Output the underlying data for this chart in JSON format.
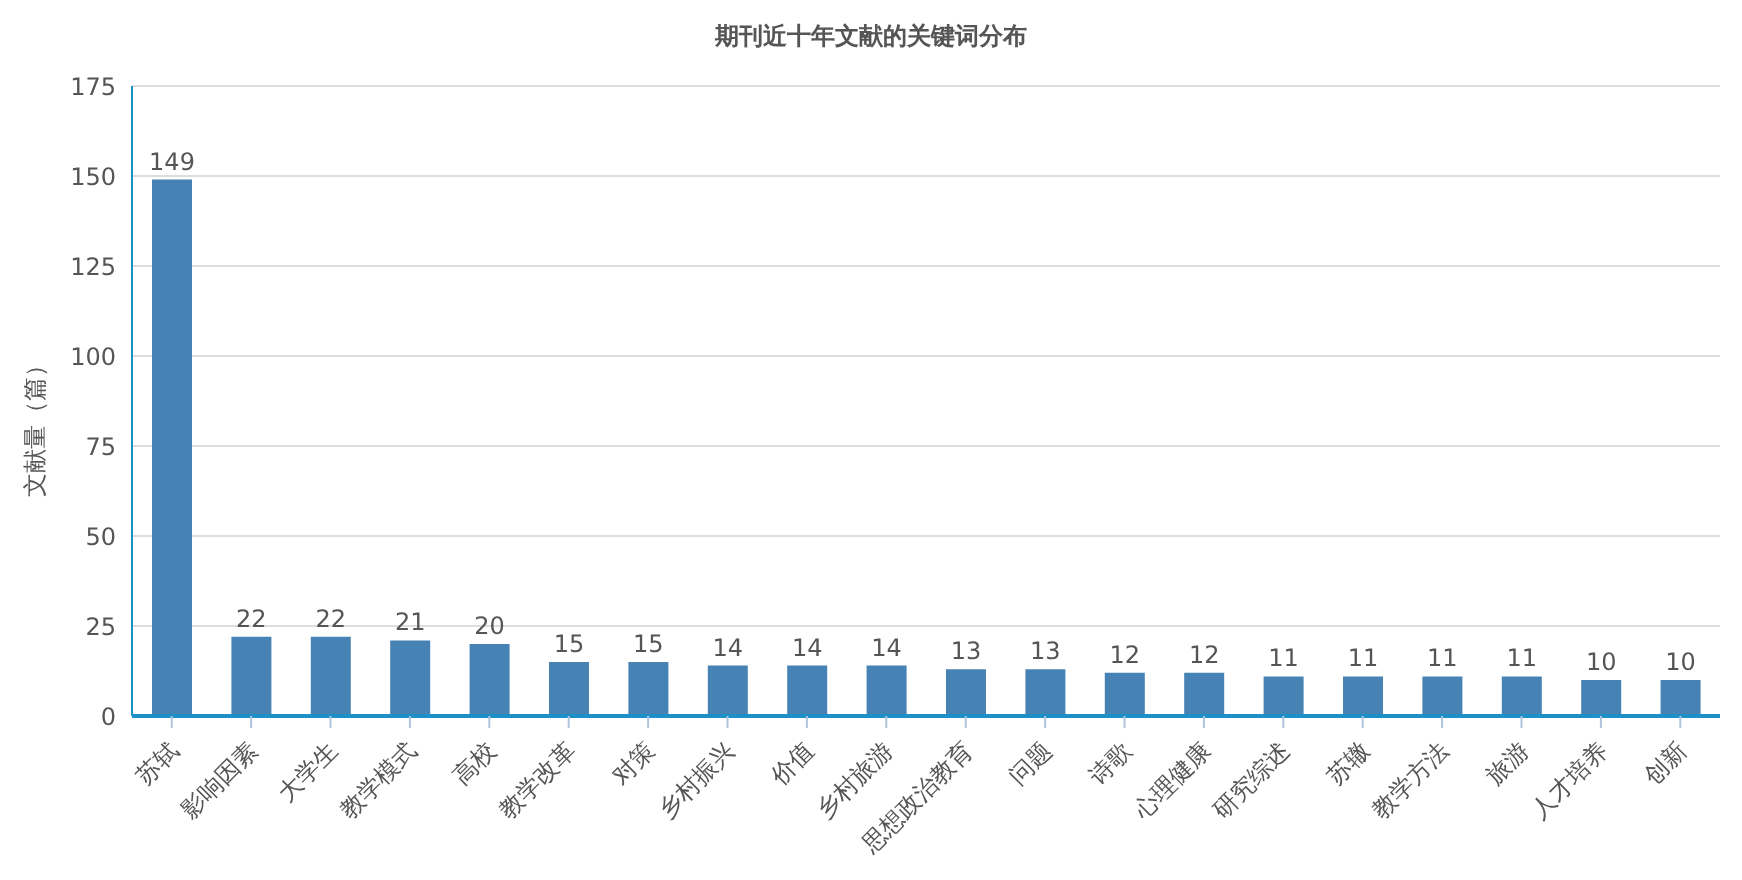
{
  "chart_data": {
    "type": "bar",
    "title": "期刊近十年文献的关键词分布",
    "ylabel": "文献量（篇）",
    "categories": [
      "苏轼",
      "影响因素",
      "大学生",
      "教学模式",
      "高校",
      "教学改革",
      "对策",
      "乡村振兴",
      "价值",
      "乡村旅游",
      "思想政治教育",
      "问题",
      "诗歌",
      "心理健康",
      "研究综述",
      "苏辙",
      "教学方法",
      "旅游",
      "人才培养",
      "创新"
    ],
    "values": [
      149,
      22,
      22,
      21,
      20,
      15,
      15,
      14,
      14,
      14,
      13,
      13,
      12,
      12,
      11,
      11,
      11,
      11,
      10,
      10
    ],
    "color": "#4682b4",
    "ylim": [
      0,
      175
    ],
    "yticks": [
      0,
      25,
      50,
      75,
      100,
      125,
      150,
      175
    ],
    "grid": "y",
    "data_labels": true
  }
}
